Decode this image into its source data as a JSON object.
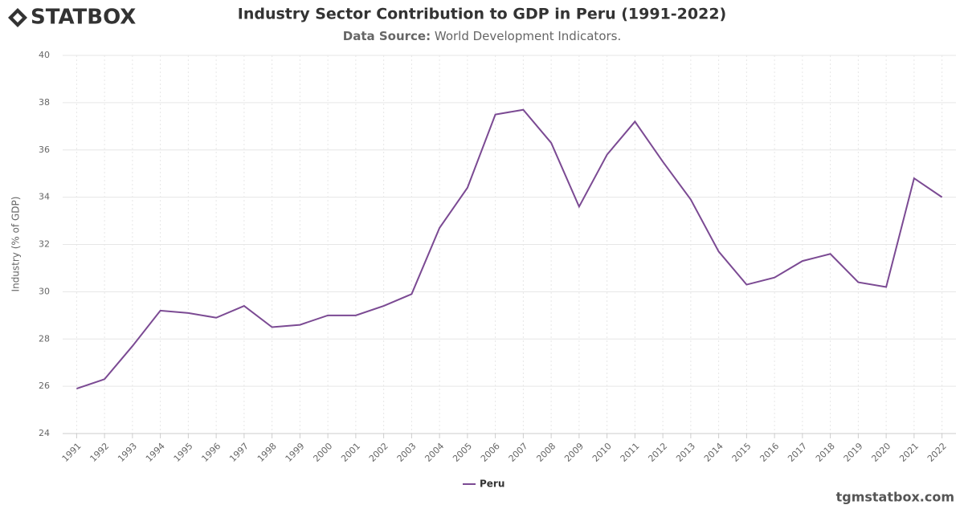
{
  "logo": "STATBOX",
  "watermark": "tgmstatbox.com",
  "chart_data": {
    "type": "line",
    "title": "Industry Sector Contribution to GDP in Peru (1991-2022)",
    "subtitle_label": "Data Source:",
    "subtitle_text": "World Development Indicators.",
    "y_label": "Industry (% of GDP)",
    "categories": [
      "1991",
      "1992",
      "1993",
      "1994",
      "1995",
      "1996",
      "1997",
      "1998",
      "1999",
      "2000",
      "2001",
      "2002",
      "2003",
      "2004",
      "2005",
      "2006",
      "2007",
      "2008",
      "2009",
      "2010",
      "2011",
      "2012",
      "2013",
      "2014",
      "2015",
      "2016",
      "2017",
      "2018",
      "2019",
      "2020",
      "2021",
      "2022"
    ],
    "series": [
      {
        "name": "Peru",
        "color": "#7b4a93",
        "values": [
          25.9,
          26.3,
          27.7,
          29.2,
          29.1,
          28.9,
          29.4,
          28.5,
          28.6,
          29.0,
          29.0,
          29.4,
          29.9,
          32.7,
          34.4,
          37.5,
          37.7,
          36.3,
          33.6,
          35.8,
          37.2,
          35.5,
          33.9,
          31.7,
          30.3,
          30.6,
          31.3,
          31.6,
          30.4,
          30.2,
          34.8,
          34.0
        ]
      }
    ],
    "ylim": [
      24,
      40
    ],
    "yticks": [
      24,
      26,
      28,
      30,
      32,
      34,
      36,
      38,
      40
    ],
    "grid": true,
    "legend": "bottom"
  }
}
